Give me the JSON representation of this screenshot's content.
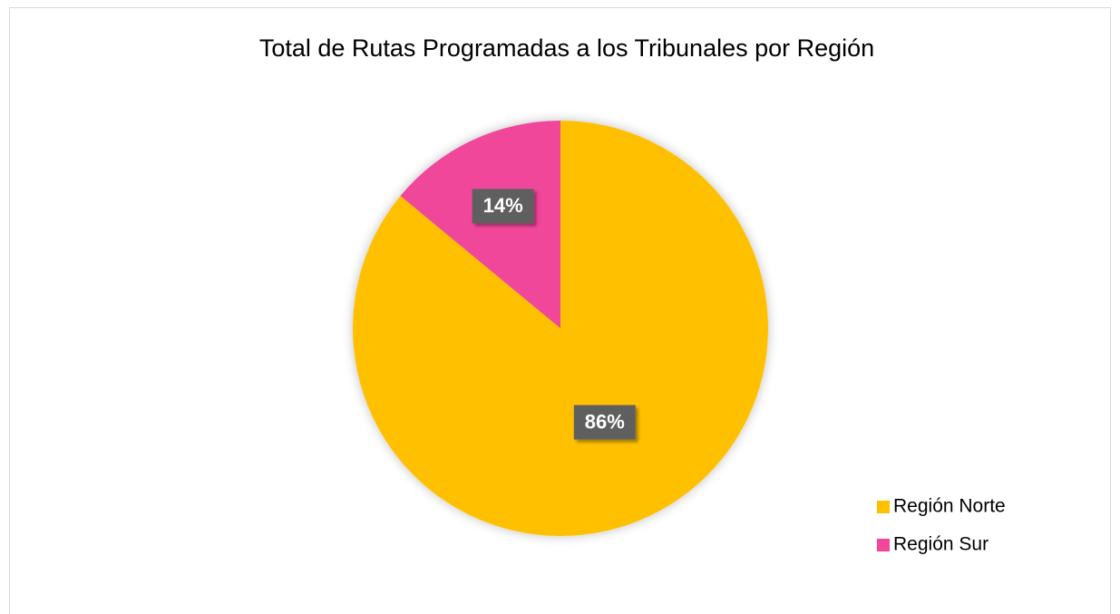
{
  "chart_data": {
    "type": "pie",
    "title": "Total de Rutas Programadas a los Tribunales por Región",
    "categories": [
      "Región Norte",
      "Región Sur"
    ],
    "values": [
      86,
      14
    ],
    "value_labels": [
      "86%",
      "14%"
    ],
    "colors": [
      "#FFC000",
      "#F0479A"
    ],
    "legend": "right"
  }
}
